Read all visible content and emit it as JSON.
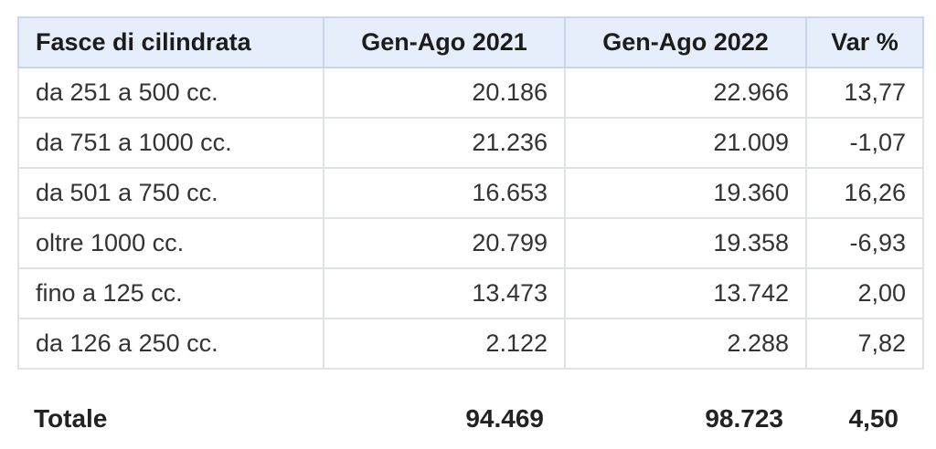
{
  "table": {
    "header": [
      "Fasce di cilindrata",
      "Gen-Ago 2021",
      "Gen-Ago 2022",
      "Var %"
    ],
    "rows": [
      [
        "da 251 a 500 cc.",
        "20.186",
        "22.966",
        "13,77"
      ],
      [
        "da 751 a 1000 cc.",
        "21.236",
        "21.009",
        "-1,07"
      ],
      [
        "da 501 a 750 cc.",
        "16.653",
        "19.360",
        "16,26"
      ],
      [
        "oltre 1000 cc.",
        "20.799",
        "19.358",
        "-6,93"
      ],
      [
        "fino a 125 cc.",
        "13.473",
        "13.742",
        "2,00"
      ],
      [
        "da 126 a 250 cc.",
        "2.122",
        "2.288",
        "7,82"
      ]
    ],
    "total": [
      "Totale",
      "94.469",
      "98.723",
      "4,50"
    ]
  }
}
